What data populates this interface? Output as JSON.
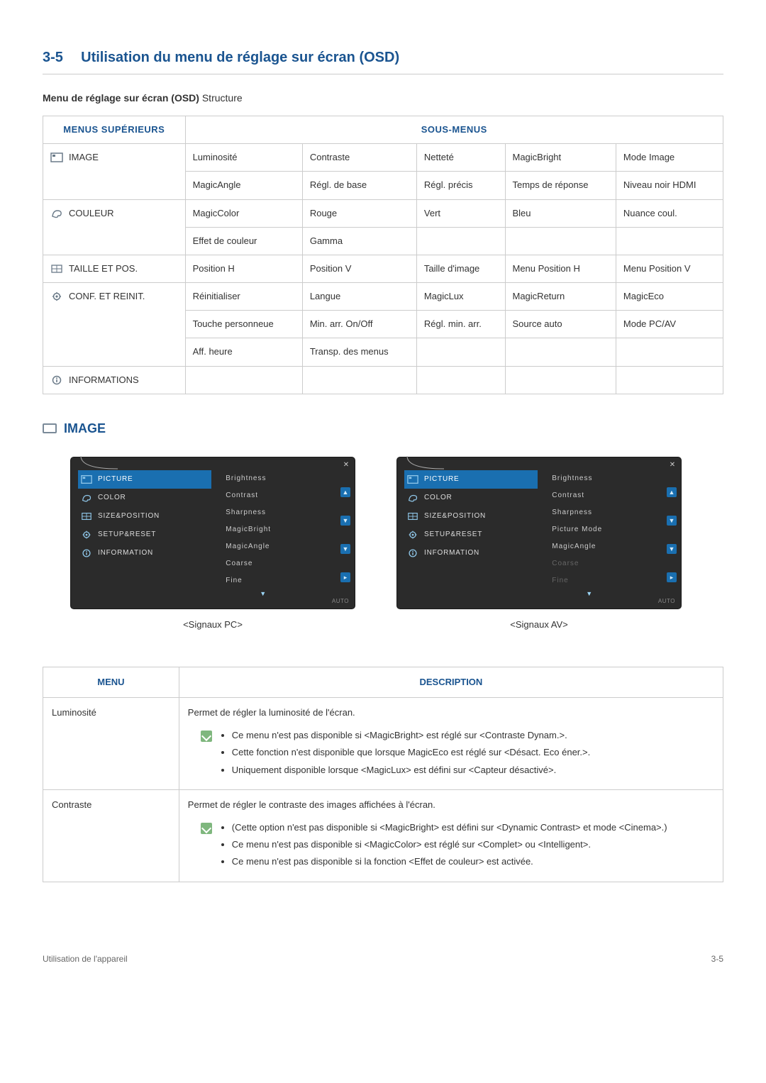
{
  "header": {
    "section_num": "3-5",
    "section_title": "Utilisation du menu de réglage sur écran (OSD)"
  },
  "subheading_bold": "Menu de réglage sur écran (OSD)",
  "subheading_rest": "Structure",
  "struct_table": {
    "th_upper": "MENUS SUPÉRIEURS",
    "th_sub": "SOUS-MENUS",
    "rows": [
      {
        "upper": "IMAGE",
        "icon": "picture",
        "cells": [
          [
            "Luminosité",
            "Contraste",
            "Netteté",
            "MagicBright",
            "Mode Image"
          ],
          [
            "MagicAngle",
            "Régl. de base",
            "Régl. précis",
            "Temps de réponse",
            "Niveau noir HDMI"
          ]
        ]
      },
      {
        "upper": "COULEUR",
        "icon": "color",
        "cells": [
          [
            "MagicColor",
            "Rouge",
            "Vert",
            "Bleu",
            "Nuance coul."
          ],
          [
            "Effet de couleur",
            "Gamma",
            "",
            "",
            ""
          ]
        ]
      },
      {
        "upper": "TAILLE ET POS.",
        "icon": "sizepos",
        "cells": [
          [
            "Position H",
            "Position V",
            "Taille d'image",
            "Menu Position H",
            "Menu Position V"
          ]
        ]
      },
      {
        "upper": "CONF. ET REINIT.",
        "icon": "gear",
        "cells": [
          [
            "Réinitialiser",
            "Langue",
            "MagicLux",
            "MagicReturn",
            "MagicEco"
          ],
          [
            "Touche personneue",
            "Min. arr. On/Off",
            "Régl. min. arr.",
            "Source auto",
            "Mode PC/AV"
          ],
          [
            "Aff. heure",
            "Transp. des menus",
            "",
            "",
            ""
          ]
        ]
      },
      {
        "upper": "INFORMATIONS",
        "icon": "info",
        "cells": [
          [
            "",
            "",
            "",
            "",
            ""
          ]
        ]
      }
    ]
  },
  "image_section_title": "IMAGE",
  "osd": {
    "pc_caption": "<Signaux PC>",
    "av_caption": "<Signaux AV>",
    "auto_label": "AUTO",
    "left_items": [
      {
        "label": "PICTURE",
        "icon": "picture",
        "active": true
      },
      {
        "label": "COLOR",
        "icon": "color",
        "active": false
      },
      {
        "label": "SIZE&POSITION",
        "icon": "sizepos",
        "active": false
      },
      {
        "label": "SETUP&RESET",
        "icon": "gear",
        "active": false
      },
      {
        "label": "INFORMATION",
        "icon": "info",
        "active": false
      }
    ],
    "pc_right": [
      "Brightness",
      "Contrast",
      "Sharpness",
      "MagicBright",
      "MagicAngle",
      "Coarse",
      "Fine"
    ],
    "pc_dim": [],
    "av_right": [
      "Brightness",
      "Contrast",
      "Sharpness",
      "Picture Mode",
      "MagicAngle",
      "Coarse",
      "Fine"
    ],
    "av_dim": [
      "Coarse",
      "Fine"
    ]
  },
  "desc_table": {
    "th_menu": "MENU",
    "th_desc": "DESCRIPTION",
    "rows": [
      {
        "menu": "Luminosité",
        "intro": "Permet de régler la luminosité de l'écran.",
        "notes": [
          "Ce menu n'est pas disponible si <MagicBright> est réglé sur <Contraste Dynam.>.",
          "Cette fonction n'est disponible que lorsque MagicEco est réglé sur <Désact. Eco éner.>.",
          "Uniquement disponible lorsque <MagicLux> est défini sur <Capteur désactivé>."
        ]
      },
      {
        "menu": "Contraste",
        "intro": "Permet de régler le contraste des images affichées à l'écran.",
        "notes": [
          "(Cette option n'est pas disponible si <MagicBright> est défini sur <Dynamic Contrast> et mode <Cinema>.)",
          "Ce menu n'est pas disponible si <MagicColor> est réglé sur <Complet> ou <Intelligent>.",
          "Ce menu n'est pas disponible si la fonction <Effet de couleur> est activée."
        ]
      }
    ]
  },
  "footer": {
    "left": "Utilisation de l'appareil",
    "right": "3-5"
  },
  "colors": {
    "accent": "#1a5490",
    "border": "#cccccc",
    "osd_bg": "#2b2b2b",
    "osd_active": "#1a6fb0",
    "note_green": "#7fb77e"
  }
}
